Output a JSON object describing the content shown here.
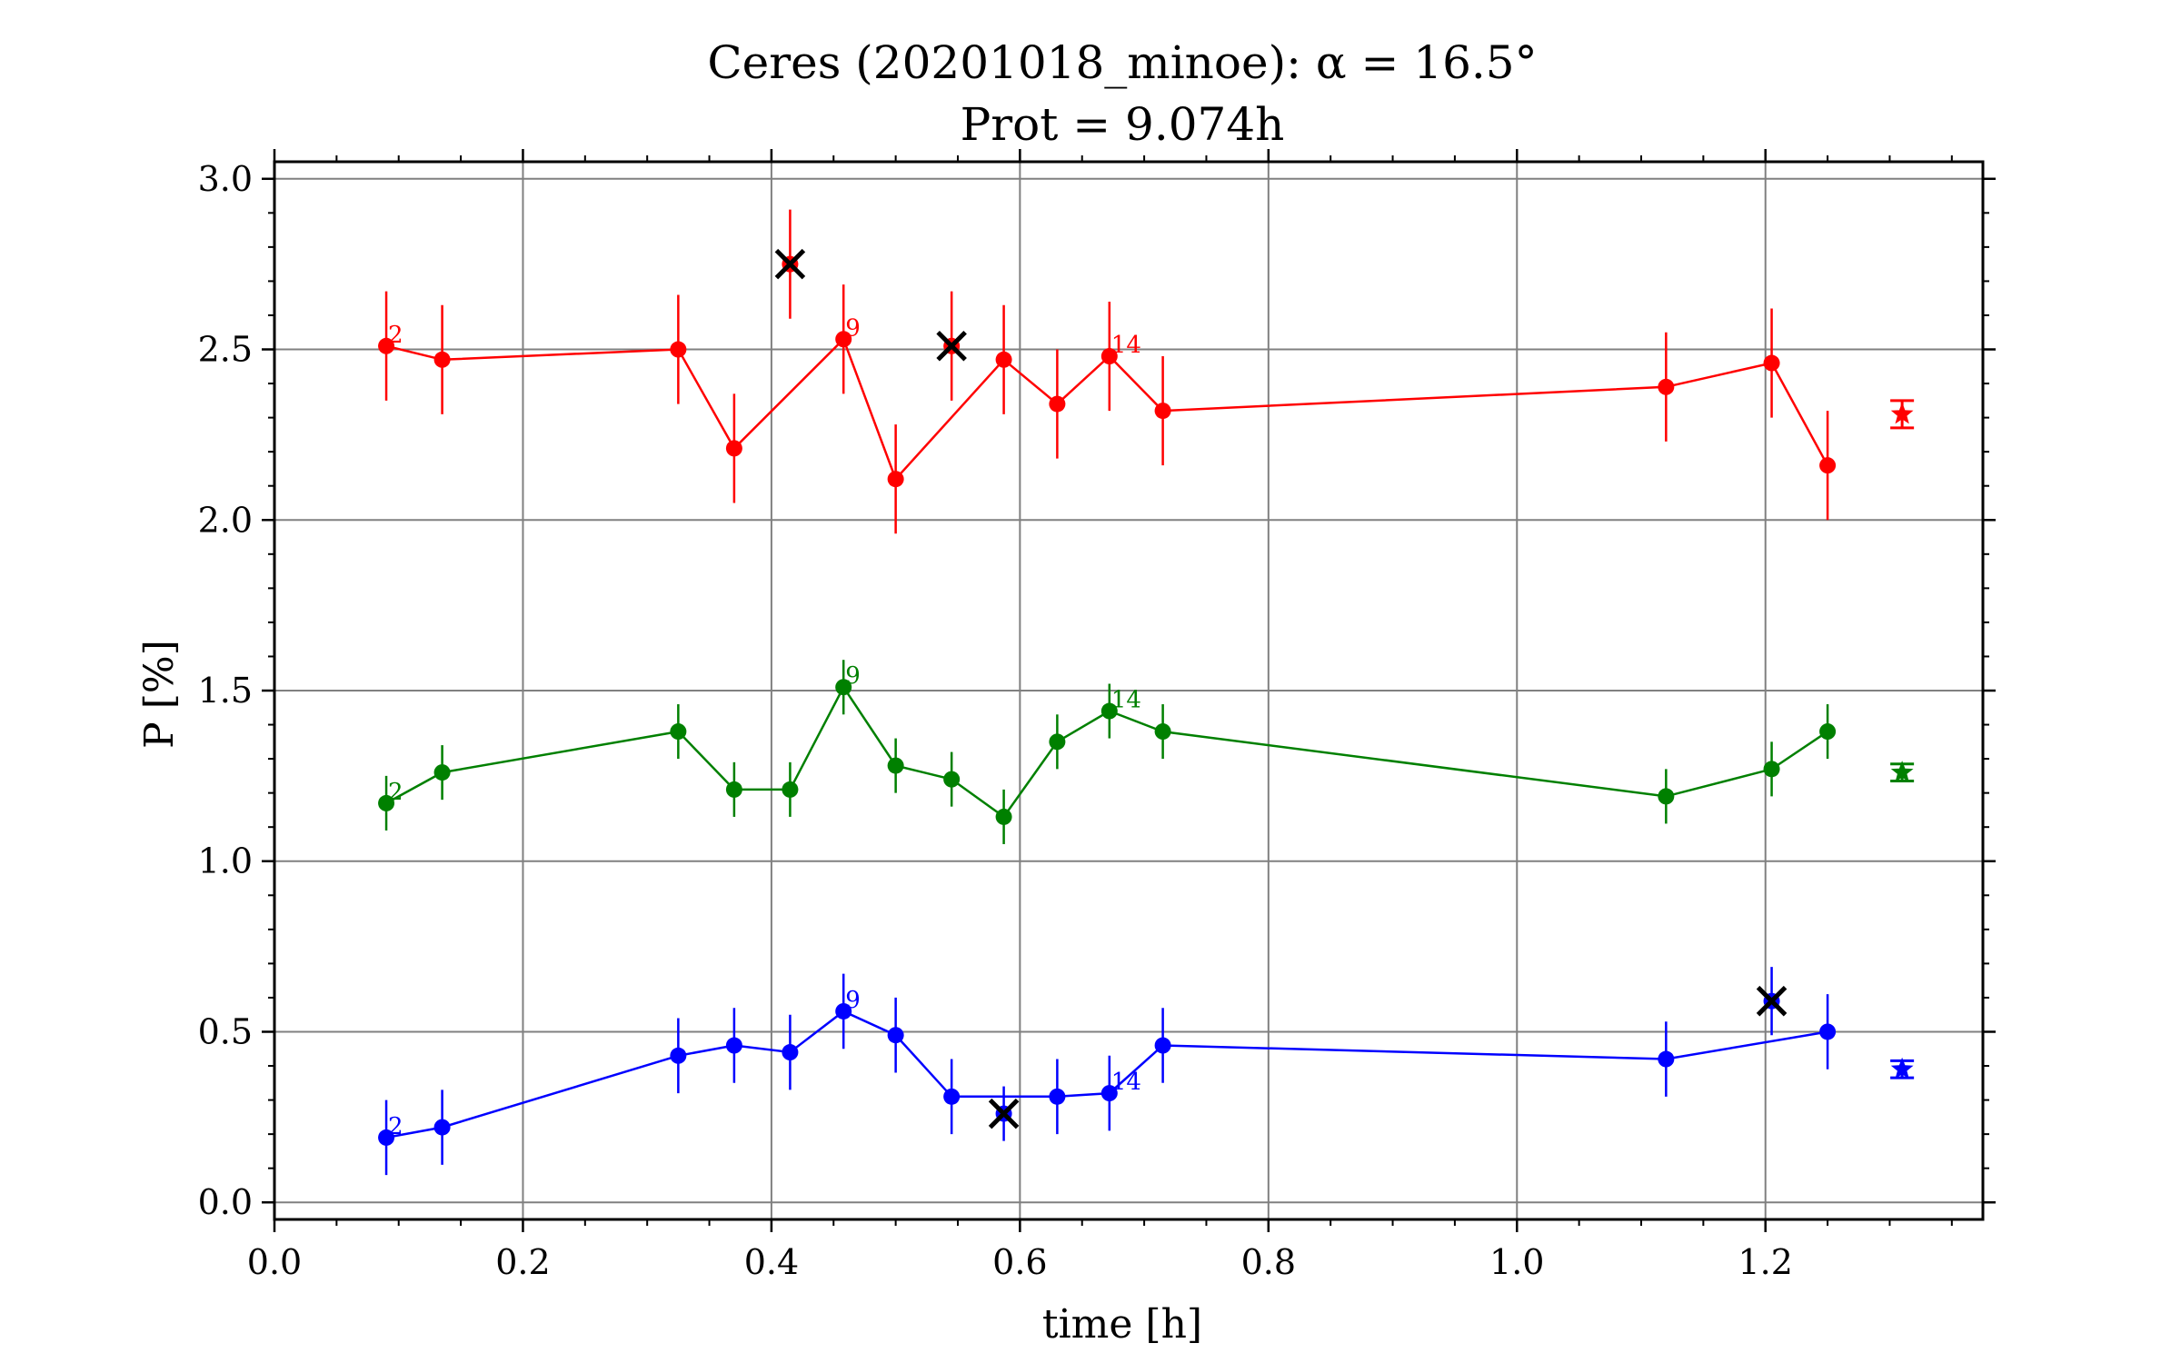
{
  "chart_data": {
    "type": "scatter",
    "title": "Ceres (20201018_minoe): α = 16.5°",
    "subtitle": "Prot = 9.074h",
    "xlabel": "time [h]",
    "ylabel": "P [%]",
    "xlim": [
      0.0,
      1.375
    ],
    "ylim": [
      -0.05,
      3.05
    ],
    "xticks": [
      0.0,
      0.2,
      0.4,
      0.6,
      0.8,
      1.0,
      1.2
    ],
    "xtick_labels": [
      "0.0",
      "0.2",
      "0.4",
      "0.6",
      "0.8",
      "1.0",
      "1.2"
    ],
    "yticks": [
      0.0,
      0.5,
      1.0,
      1.5,
      2.0,
      2.5,
      3.0
    ],
    "ytick_labels": [
      "0.0",
      "0.5",
      "1.0",
      "1.5",
      "2.0",
      "2.5",
      "3.0"
    ],
    "grid": true,
    "series": [
      {
        "color": "#ff0000",
        "points": [
          {
            "x": 0.09,
            "y": 2.51,
            "err": 0.16
          },
          {
            "x": 0.135,
            "y": 2.47,
            "err": 0.16
          },
          {
            "x": 0.325,
            "y": 2.5,
            "err": 0.16
          },
          {
            "x": 0.37,
            "y": 2.21,
            "err": 0.16
          },
          {
            "x": 0.458,
            "y": 2.53,
            "err": 0.16
          },
          {
            "x": 0.5,
            "y": 2.12,
            "err": 0.16
          },
          {
            "x": 0.587,
            "y": 2.47,
            "err": 0.16
          },
          {
            "x": 0.63,
            "y": 2.34,
            "err": 0.16
          },
          {
            "x": 0.672,
            "y": 2.48,
            "err": 0.16
          },
          {
            "x": 0.715,
            "y": 2.32,
            "err": 0.16
          },
          {
            "x": 1.12,
            "y": 2.39,
            "err": 0.16
          },
          {
            "x": 1.205,
            "y": 2.46,
            "err": 0.16
          },
          {
            "x": 1.25,
            "y": 2.16,
            "err": 0.16
          }
        ],
        "rejected": [
          {
            "x": 0.415,
            "y": 2.75,
            "err": 0.16
          },
          {
            "x": 0.545,
            "y": 2.51,
            "err": 0.16
          }
        ],
        "labels": [
          {
            "x": 0.09,
            "y": 2.51,
            "text": "2"
          },
          {
            "x": 0.458,
            "y": 2.53,
            "text": "9"
          },
          {
            "x": 0.672,
            "y": 2.48,
            "text": "14"
          }
        ],
        "mean": {
          "x": 1.31,
          "y": 2.31,
          "err": 0.04
        }
      },
      {
        "color": "#008000",
        "points": [
          {
            "x": 0.09,
            "y": 1.17,
            "err": 0.08
          },
          {
            "x": 0.135,
            "y": 1.26,
            "err": 0.08
          },
          {
            "x": 0.325,
            "y": 1.38,
            "err": 0.08
          },
          {
            "x": 0.37,
            "y": 1.21,
            "err": 0.08
          },
          {
            "x": 0.415,
            "y": 1.21,
            "err": 0.08
          },
          {
            "x": 0.458,
            "y": 1.51,
            "err": 0.08
          },
          {
            "x": 0.5,
            "y": 1.28,
            "err": 0.08
          },
          {
            "x": 0.545,
            "y": 1.24,
            "err": 0.08
          },
          {
            "x": 0.587,
            "y": 1.13,
            "err": 0.08
          },
          {
            "x": 0.63,
            "y": 1.35,
            "err": 0.08
          },
          {
            "x": 0.672,
            "y": 1.44,
            "err": 0.08
          },
          {
            "x": 0.715,
            "y": 1.38,
            "err": 0.08
          },
          {
            "x": 1.12,
            "y": 1.19,
            "err": 0.08
          },
          {
            "x": 1.205,
            "y": 1.27,
            "err": 0.08
          },
          {
            "x": 1.25,
            "y": 1.38,
            "err": 0.08
          }
        ],
        "rejected": [],
        "labels": [
          {
            "x": 0.09,
            "y": 1.17,
            "text": "2"
          },
          {
            "x": 0.458,
            "y": 1.51,
            "text": "9"
          },
          {
            "x": 0.672,
            "y": 1.44,
            "text": "14"
          }
        ],
        "mean": {
          "x": 1.31,
          "y": 1.26,
          "err": 0.025
        }
      },
      {
        "color": "#0000ff",
        "points": [
          {
            "x": 0.09,
            "y": 0.19,
            "err": 0.11
          },
          {
            "x": 0.135,
            "y": 0.22,
            "err": 0.11
          },
          {
            "x": 0.325,
            "y": 0.43,
            "err": 0.11
          },
          {
            "x": 0.37,
            "y": 0.46,
            "err": 0.11
          },
          {
            "x": 0.415,
            "y": 0.44,
            "err": 0.11
          },
          {
            "x": 0.458,
            "y": 0.56,
            "err": 0.11
          },
          {
            "x": 0.5,
            "y": 0.49,
            "err": 0.11
          },
          {
            "x": 0.545,
            "y": 0.31,
            "err": 0.11
          },
          {
            "x": 0.63,
            "y": 0.31,
            "err": 0.11
          },
          {
            "x": 0.672,
            "y": 0.32,
            "err": 0.11
          },
          {
            "x": 0.715,
            "y": 0.46,
            "err": 0.11
          },
          {
            "x": 1.12,
            "y": 0.42,
            "err": 0.11
          },
          {
            "x": 1.25,
            "y": 0.5,
            "err": 0.11
          }
        ],
        "rejected": [
          {
            "x": 0.587,
            "y": 0.26,
            "err": 0.08
          },
          {
            "x": 1.205,
            "y": 0.59,
            "err": 0.1
          }
        ],
        "labels": [
          {
            "x": 0.09,
            "y": 0.19,
            "text": "2"
          },
          {
            "x": 0.458,
            "y": 0.56,
            "text": "9"
          },
          {
            "x": 0.672,
            "y": 0.32,
            "text": "14"
          }
        ],
        "mean": {
          "x": 1.31,
          "y": 0.39,
          "err": 0.025
        }
      }
    ]
  }
}
